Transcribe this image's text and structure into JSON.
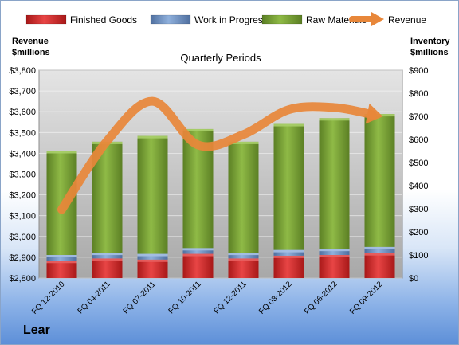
{
  "company": "Lear",
  "left_axis_title": [
    "Revenue",
    "$millions"
  ],
  "right_axis_title": [
    "Inventory",
    "$millions"
  ],
  "colors": {
    "finished_goods": "#d42a2a",
    "work_in_progress": "#6e8fc2",
    "raw_materials": "#7ea53a",
    "revenue": "#e8873a"
  },
  "chart_data": {
    "type": "bar",
    "stacked": true,
    "title": "Quarterly Periods",
    "categories": [
      "FQ 12-2010",
      "FQ 04-2011",
      "FQ 07-2011",
      "FQ 10-2011",
      "FQ 12-2011",
      "FQ 03-2012",
      "FQ 06-2012",
      "FQ 09-2012"
    ],
    "series": [
      {
        "name": "Finished Goods",
        "axis": "right",
        "values": [
          75,
          85,
          80,
          105,
          85,
          97,
          100,
          108
        ]
      },
      {
        "name": "Work in Progress",
        "axis": "right",
        "values": [
          25,
          25,
          25,
          25,
          25,
          25,
          27,
          27
        ]
      },
      {
        "name": "Raw Materials",
        "axis": "right",
        "values": [
          450,
          480,
          510,
          515,
          480,
          545,
          565,
          575
        ]
      },
      {
        "name": "Revenue",
        "axis": "left",
        "type": "line",
        "values": [
          3130,
          3460,
          3650,
          3440,
          3490,
          3610,
          3620,
          3580
        ]
      }
    ],
    "left_axis": {
      "ylim": [
        2800,
        3800
      ],
      "ticks": [
        "$2,800",
        "$2,900",
        "$3,000",
        "$3,100",
        "$3,200",
        "$3,300",
        "$3,400",
        "$3,500",
        "$3,600",
        "$3,700",
        "$3,800"
      ]
    },
    "right_axis": {
      "ylim": [
        0,
        900
      ],
      "ticks": [
        "$0",
        "$100",
        "$200",
        "$300",
        "$400",
        "$500",
        "$600",
        "$700",
        "$800",
        "$900"
      ]
    },
    "legend_position": "top",
    "grid": true
  }
}
